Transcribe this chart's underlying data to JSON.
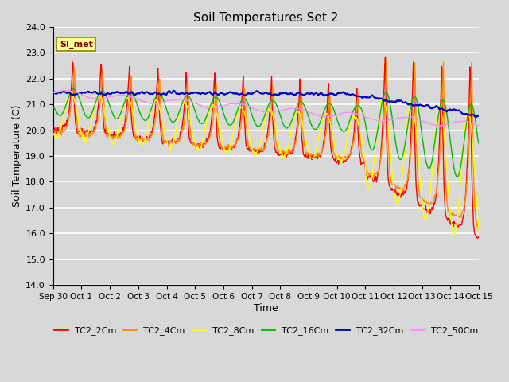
{
  "title": "Soil Temperatures Set 2",
  "xlabel": "Time",
  "ylabel": "Soil Temperature (C)",
  "ylim": [
    14.0,
    24.0
  ],
  "yticks": [
    14.0,
    15.0,
    16.0,
    17.0,
    18.0,
    19.0,
    20.0,
    21.0,
    22.0,
    23.0,
    24.0
  ],
  "xtick_labels": [
    "Sep 30",
    "Oct 1",
    "Oct 2",
    "Oct 3",
    "Oct 4",
    "Oct 5",
    "Oct 6",
    "Oct 7",
    "Oct 8",
    "Oct 9",
    "Oct 10",
    "Oct 11",
    "Oct 12",
    "Oct 13",
    "Oct 14",
    "Oct 15"
  ],
  "legend_labels": [
    "TC2_2Cm",
    "TC2_4Cm",
    "TC2_8Cm",
    "TC2_16Cm",
    "TC2_32Cm",
    "TC2_50Cm"
  ],
  "line_colors": [
    "#FF0000",
    "#FF8C00",
    "#FFFF00",
    "#00BB00",
    "#0000CC",
    "#FF88FF"
  ],
  "annotation_text": "SI_met",
  "annotation_color": "#880000",
  "annotation_bg": "#FFFF99",
  "background_color": "#D8D8D8",
  "grid_color": "#FFFFFF",
  "n_points": 720
}
